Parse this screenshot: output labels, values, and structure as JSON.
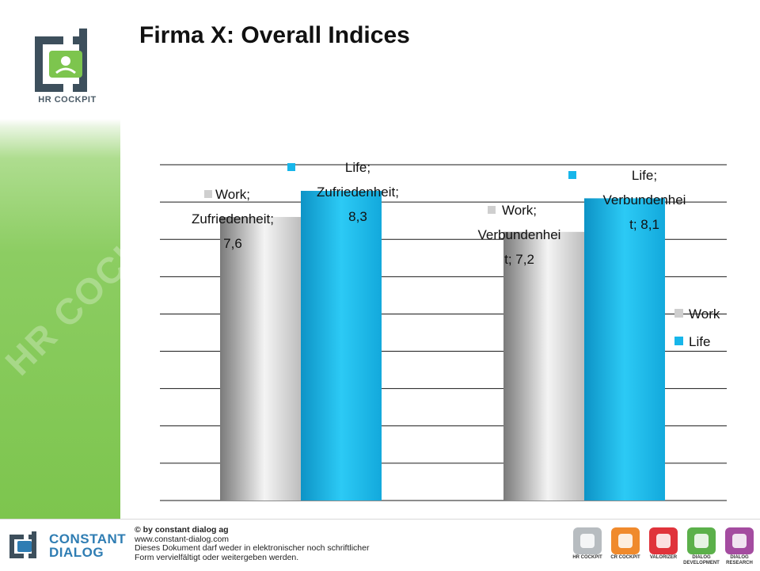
{
  "slide": {
    "title": "Firma X: Overall Indices",
    "logo_caption": "HR COCKPIT",
    "watermark": "HR COCKPIT"
  },
  "colors": {
    "work": "#cfcfcf",
    "life": "#17b6ea",
    "brand_green": "#7dc54e",
    "brand_blue": "#2f7db3"
  },
  "chart_data": {
    "type": "bar",
    "categories": [
      "Zufriedenheit",
      "Verbundenheit"
    ],
    "series": [
      {
        "name": "Work",
        "values": [
          7.6,
          7.2
        ]
      },
      {
        "name": "Life",
        "values": [
          8.3,
          8.1
        ]
      }
    ],
    "data_labels": [
      [
        "Work;",
        "Zufriedenheit;",
        "7,6"
      ],
      [
        "Life;",
        "Zufriedenheit;",
        "8,3"
      ],
      [
        "Work;",
        "Verbundenhei",
        "t; 7,2"
      ],
      [
        "Life;",
        "Verbundenhei",
        "t; 8,1"
      ]
    ],
    "legend": [
      "Work",
      "Life"
    ],
    "legend_position": "right",
    "ylim": [
      0,
      9
    ],
    "grid": true
  },
  "footer": {
    "brand_line1": "CONSTANT",
    "brand_line2": "DIALOG",
    "copyright": "© by constant dialog ag",
    "website": "www.constant-dialog.com",
    "notice1": "Dieses Dokument darf weder in elektronischer noch schriftlicher",
    "notice2": "Form vervielfältigt oder weitergeben werden.",
    "products": [
      {
        "label": "HR COCKPIT",
        "color": "#b7bcc0"
      },
      {
        "label": "CR COCKPIT",
        "color": "#f08a2c"
      },
      {
        "label": "VALORIZER",
        "color": "#e0333b"
      },
      {
        "label": "DIALOG DEVELOPMENT",
        "color": "#5bb04a"
      },
      {
        "label": "DIALOG RESEARCH",
        "color": "#a44ca0"
      }
    ]
  }
}
